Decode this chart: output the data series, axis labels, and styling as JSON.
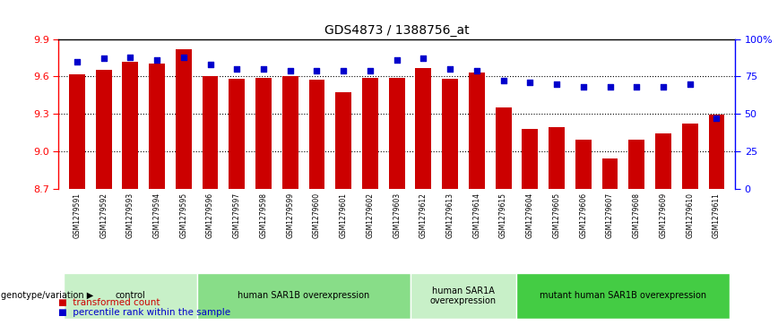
{
  "title": "GDS4873 / 1388756_at",
  "samples": [
    "GSM1279591",
    "GSM1279592",
    "GSM1279593",
    "GSM1279594",
    "GSM1279595",
    "GSM1279596",
    "GSM1279597",
    "GSM1279598",
    "GSM1279599",
    "GSM1279600",
    "GSM1279601",
    "GSM1279602",
    "GSM1279603",
    "GSM1279612",
    "GSM1279613",
    "GSM1279614",
    "GSM1279615",
    "GSM1279604",
    "GSM1279605",
    "GSM1279606",
    "GSM1279607",
    "GSM1279608",
    "GSM1279609",
    "GSM1279610",
    "GSM1279611"
  ],
  "bar_values": [
    9.62,
    9.65,
    9.72,
    9.7,
    9.82,
    9.6,
    9.58,
    9.59,
    9.6,
    9.57,
    9.47,
    9.59,
    9.59,
    9.67,
    9.58,
    9.63,
    9.35,
    9.18,
    9.19,
    9.09,
    8.94,
    9.09,
    9.14,
    9.22,
    9.29
  ],
  "percentile_values": [
    85,
    87,
    88,
    86,
    88,
    83,
    80,
    80,
    79,
    79,
    79,
    79,
    86,
    87,
    80,
    79,
    72,
    71,
    70,
    68,
    68,
    68,
    68,
    70,
    47
  ],
  "ymin": 8.7,
  "ymax": 9.9,
  "yticks": [
    8.7,
    9.0,
    9.3,
    9.6,
    9.9
  ],
  "right_yticks": [
    0,
    25,
    50,
    75,
    100
  ],
  "right_yticklabels": [
    "0",
    "25",
    "50",
    "75",
    "100%"
  ],
  "bar_color": "#cc0000",
  "dot_color": "#0000cc",
  "groups": [
    {
      "label": "control",
      "start": 0,
      "end": 5,
      "color": "#c8f0c8"
    },
    {
      "label": "human SAR1B overexpression",
      "start": 5,
      "end": 13,
      "color": "#88dd88"
    },
    {
      "label": "human SAR1A\noverexpression",
      "start": 13,
      "end": 17,
      "color": "#c8f0c8"
    },
    {
      "label": "mutant human SAR1B overexpression",
      "start": 17,
      "end": 25,
      "color": "#44cc44"
    }
  ],
  "genotype_label": "genotype/variation",
  "legend_red": "transformed count",
  "legend_blue": "percentile rank within the sample"
}
